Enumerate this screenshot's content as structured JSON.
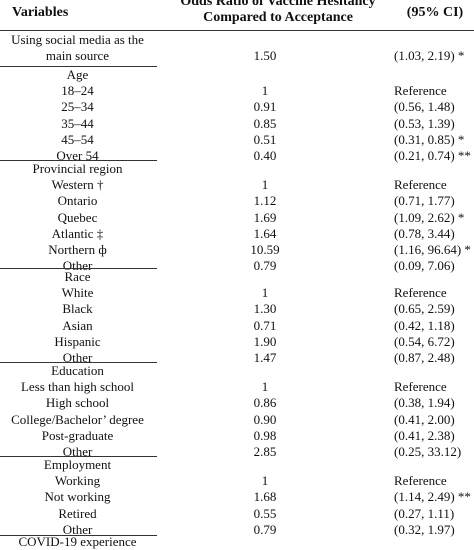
{
  "header": {
    "variables": "Variables",
    "odds_ratio_line1": "Odds Ratio of Vaccine Hesitancy",
    "odds_ratio_line2": "Compared to Acceptance",
    "ci": "(95% CI)"
  },
  "social": {
    "label_line1": "Using social media as the",
    "label_line2": "main source",
    "or": "1.50",
    "ci": "(1.03, 2.19) *"
  },
  "age": {
    "title": "Age",
    "rows": [
      {
        "label": "18–24",
        "or": "1",
        "ci": "Reference"
      },
      {
        "label": "25–34",
        "or": "0.91",
        "ci": "(0.56, 1.48)"
      },
      {
        "label": "35–44",
        "or": "0.85",
        "ci": "(0.53, 1.39)"
      },
      {
        "label": "45–54",
        "or": "0.51",
        "ci": "(0.31, 0.85) *"
      },
      {
        "label": "Over 54",
        "or": "0.40",
        "ci": "(0.21, 0.74) **"
      }
    ]
  },
  "region": {
    "title": "Provincial region",
    "rows": [
      {
        "label": "Western †",
        "or": "1",
        "ci": "Reference"
      },
      {
        "label": "Ontario",
        "or": "1.12",
        "ci": "(0.71, 1.77)"
      },
      {
        "label": "Quebec",
        "or": "1.69",
        "ci": "(1.09, 2.62) *"
      },
      {
        "label": "Atlantic ‡",
        "or": "1.64",
        "ci": "(0.78, 3.44)"
      },
      {
        "label": "Northern ф",
        "or": "10.59",
        "ci": "(1.16, 96.64) *"
      },
      {
        "label": "Other",
        "or": "0.79",
        "ci": "(0.09, 7.06)"
      }
    ]
  },
  "race": {
    "title": "Race",
    "rows": [
      {
        "label": "White",
        "or": "1",
        "ci": "Reference"
      },
      {
        "label": "Black",
        "or": "1.30",
        "ci": "(0.65, 2.59)"
      },
      {
        "label": "Asian",
        "or": "0.71",
        "ci": "(0.42, 1.18)"
      },
      {
        "label": "Hispanic",
        "or": "1.90",
        "ci": "(0.54, 6.72)"
      },
      {
        "label": "Other",
        "or": "1.47",
        "ci": "(0.87, 2.48)"
      }
    ]
  },
  "education": {
    "title": "Education",
    "rows": [
      {
        "label": "Less than high school",
        "or": "1",
        "ci": "Reference"
      },
      {
        "label": "High school",
        "or": "0.86",
        "ci": "(0.38, 1.94)"
      },
      {
        "label": "College/Bachelor’ degree",
        "or": "0.90",
        "ci": "(0.41, 2.00)"
      },
      {
        "label": "Post-graduate",
        "or": "0.98",
        "ci": "(0.41, 2.38)"
      },
      {
        "label": "Other",
        "or": "2.85",
        "ci": "(0.25, 33.12)"
      }
    ]
  },
  "employment": {
    "title": "Employment",
    "rows": [
      {
        "label": "Working",
        "or": "1",
        "ci": "Reference"
      },
      {
        "label": "Not working",
        "or": "1.68",
        "ci": "(1.14, 2.49) **"
      },
      {
        "label": "Retired",
        "or": "0.55",
        "ci": "(0.27, 1.11)"
      },
      {
        "label": "Other",
        "or": "0.79",
        "ci": "(0.32, 1.97)"
      }
    ]
  },
  "covid": {
    "title": "COVID-19 experience"
  }
}
